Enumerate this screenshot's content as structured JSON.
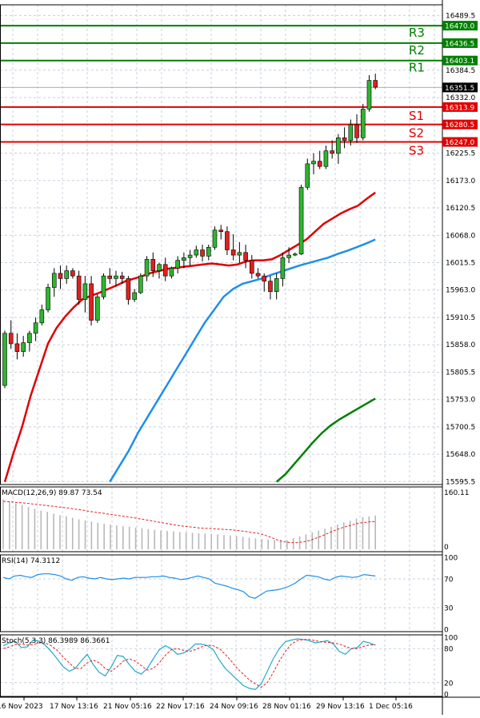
{
  "chart_data": [
    {
      "type": "candlestick",
      "price_axis": {
        "ylim": [
          15590,
          16510
        ],
        "ticks": [
          "16489.5",
          "16384.5",
          "16332.0",
          "16225.5",
          "16173.0",
          "16120.5",
          "16068.0",
          "16015.5",
          "15963.0",
          "15910.5",
          "15858.0",
          "15805.5",
          "15753.0",
          "15700.5",
          "15648.0",
          "15595.5"
        ],
        "current_price": "16351.5"
      },
      "levels": [
        {
          "name": "R3",
          "value": 16470.0,
          "label": "16470.0",
          "color": "#008000"
        },
        {
          "name": "R2",
          "value": 16436.5,
          "label": "16436.5",
          "color": "#008000"
        },
        {
          "name": "R1",
          "value": 16403.1,
          "label": "16403.1",
          "color": "#008000"
        },
        {
          "name": "S1",
          "value": 16313.9,
          "label": "16313.9",
          "color": "#e00000"
        },
        {
          "name": "S2",
          "value": 16280.5,
          "label": "16280.5",
          "color": "#e00000"
        },
        {
          "name": "S3",
          "value": 16247.0,
          "label": "16247.0",
          "color": "#e00000"
        }
      ],
      "x_labels": [
        "16 Nov 2023",
        "17 Nov 13:16",
        "21 Nov 05:16",
        "22 Nov 17:16",
        "24 Nov 09:16",
        "28 Nov 01:16",
        "29 Nov 13:16",
        "1 Dec 05:16"
      ],
      "candles": [
        [
          15780,
          15885,
          15775,
          15880
        ],
        [
          15880,
          15905,
          15850,
          15860
        ],
        [
          15860,
          15880,
          15830,
          15845
        ],
        [
          15845,
          15875,
          15835,
          15862
        ],
        [
          15862,
          15885,
          15845,
          15880
        ],
        [
          15880,
          15910,
          15865,
          15900
        ],
        [
          15900,
          15935,
          15895,
          15925
        ],
        [
          15925,
          15975,
          15920,
          15968
        ],
        [
          15968,
          16005,
          15950,
          15995
        ],
        [
          15995,
          16010,
          15965,
          15985
        ],
        [
          15985,
          16010,
          15975,
          16000
        ],
        [
          16000,
          16005,
          15985,
          15990
        ],
        [
          15990,
          16000,
          15935,
          15945
        ],
        [
          15945,
          15990,
          15920,
          15975
        ],
        [
          15975,
          15990,
          15895,
          15905
        ],
        [
          15905,
          15955,
          15900,
          15950
        ],
        [
          15950,
          15995,
          15945,
          15990
        ],
        [
          15990,
          16005,
          15975,
          15985
        ],
        [
          15985,
          16000,
          15970,
          15990
        ],
        [
          15990,
          15998,
          15975,
          15985
        ],
        [
          15985,
          15990,
          15935,
          15945
        ],
        [
          15945,
          15965,
          15940,
          15958
        ],
        [
          15958,
          15995,
          15955,
          15990
        ],
        [
          15990,
          16028,
          15980,
          16022
        ],
        [
          16022,
          16035,
          15988,
          16000
        ],
        [
          16000,
          16015,
          15985,
          16012
        ],
        [
          16012,
          16025,
          15980,
          15990
        ],
        [
          15990,
          16008,
          15985,
          16005
        ],
        [
          16005,
          16028,
          15995,
          16020
        ],
        [
          16020,
          16035,
          16005,
          16025
        ],
        [
          16025,
          16040,
          16010,
          16030
        ],
        [
          16030,
          16048,
          16025,
          16040
        ],
        [
          16040,
          16050,
          16018,
          16028
        ],
        [
          16028,
          16050,
          16020,
          16045
        ],
        [
          16045,
          16085,
          16040,
          16078
        ],
        [
          16078,
          16088,
          16060,
          16075
        ],
        [
          16075,
          16085,
          16030,
          16040
        ],
        [
          16040,
          16070,
          16020,
          16030
        ],
        [
          16030,
          16055,
          16015,
          16035
        ],
        [
          16035,
          16050,
          16005,
          16020
        ],
        [
          16020,
          16030,
          15985,
          15995
        ],
        [
          15995,
          16005,
          15985,
          15990
        ],
        [
          15990,
          15995,
          15960,
          15980
        ],
        [
          15980,
          15990,
          15945,
          15960
        ],
        [
          15960,
          15995,
          15945,
          15985
        ],
        [
          15985,
          16035,
          15970,
          16025
        ],
        [
          16025,
          16045,
          16015,
          16030
        ],
        [
          16030,
          16035,
          16028,
          16032
        ],
        [
          16032,
          16165,
          16030,
          16160
        ],
        [
          16160,
          16215,
          16155,
          16205
        ],
        [
          16205,
          16225,
          16185,
          16210
        ],
        [
          16210,
          16230,
          16195,
          16200
        ],
        [
          16200,
          16240,
          16195,
          16230
        ],
        [
          16230,
          16250,
          16215,
          16225
        ],
        [
          16225,
          16262,
          16205,
          16255
        ],
        [
          16255,
          16275,
          16235,
          16250
        ],
        [
          16250,
          16290,
          16240,
          16280
        ],
        [
          16280,
          16300,
          16245,
          16255
        ],
        [
          16255,
          16320,
          16250,
          16310
        ],
        [
          16310,
          16375,
          16305,
          16365
        ],
        [
          16365,
          16378,
          16348,
          16352
        ]
      ],
      "moving_averages": [
        {
          "color": "#e00000",
          "values": [
            15595,
            15650,
            15700,
            15760,
            15810,
            15860,
            15890,
            15912,
            15930,
            15945,
            15952,
            15958,
            15965,
            15972,
            15980,
            15985,
            15990,
            15996,
            16000,
            16004,
            16006,
            16008,
            16010,
            16012,
            16014,
            16012,
            16010,
            16012,
            16018,
            16020,
            16020,
            16022,
            16030,
            16040,
            16050,
            16060,
            16075,
            16090,
            16100,
            16110,
            16118,
            16125,
            16138,
            16150
          ]
        },
        {
          "color": "#1f8fe8",
          "values": [
            15595,
            15625,
            15655,
            15690,
            15720,
            15750,
            15780,
            15810,
            15840,
            15870,
            15900,
            15925,
            15950,
            15965,
            15975,
            15980,
            15985,
            15992,
            15998,
            16004,
            16010,
            16015,
            16020,
            16025,
            16032,
            16038,
            16045,
            16052,
            16060
          ]
        },
        {
          "color": "#008000",
          "values": [
            15595,
            15610,
            15630,
            15650,
            15670,
            15688,
            15703,
            15715,
            15725,
            15735,
            15745,
            15755
          ]
        }
      ],
      "indicators": [
        {
          "name": "macd",
          "label": "MACD(12,26,9) 89.87 73.54",
          "scale_top": "160.11",
          "scale_bottom": "0",
          "ylim": [
            0,
            160
          ],
          "histogram": [
            133,
            128,
            123,
            118,
            113,
            108,
            103,
            100,
            95,
            91,
            88,
            84,
            80,
            77,
            74,
            71,
            68,
            66,
            64,
            62,
            60,
            58,
            56,
            54,
            52,
            50,
            49,
            48,
            46,
            45,
            44,
            43,
            42,
            41,
            40,
            38,
            37,
            35,
            33,
            31,
            29,
            27,
            26,
            25,
            25,
            24,
            30,
            35,
            40,
            45,
            50,
            55,
            60,
            66,
            72,
            76,
            82,
            86,
            88,
            90
          ],
          "signal": [
            128,
            127,
            125,
            124,
            122,
            120,
            118,
            116,
            114,
            112,
            110,
            107,
            105,
            102,
            99,
            97,
            94,
            92,
            89,
            87,
            84,
            81,
            78,
            75,
            72,
            69,
            66,
            63,
            61,
            59,
            57,
            56,
            55,
            54,
            53,
            52,
            50,
            48,
            45,
            43,
            38,
            32,
            25,
            20,
            18,
            18,
            20,
            24,
            30,
            37,
            45,
            52,
            58,
            63,
            68,
            71,
            73,
            74
          ]
        },
        {
          "name": "rsi",
          "label": "RSI(14) 74.3112",
          "ylim": [
            0,
            100
          ],
          "ticks": [
            "100",
            "70",
            "30",
            "0"
          ],
          "values": [
            72,
            70,
            74,
            75,
            73,
            72,
            76,
            77,
            77,
            76,
            74,
            70,
            68,
            72,
            73,
            71,
            70,
            72,
            70,
            69,
            70,
            71,
            70,
            72,
            72,
            72,
            73,
            73,
            74,
            72,
            71,
            69,
            70,
            72,
            74,
            72,
            70,
            64,
            62,
            60,
            57,
            55,
            52,
            45,
            43,
            48,
            53,
            54,
            55,
            57,
            60,
            64,
            70,
            75,
            74,
            73,
            70,
            68,
            72,
            74,
            73,
            72,
            73,
            76,
            75,
            74
          ]
        },
        {
          "name": "stoch",
          "label": "Stoch(5,3,3) 86.3989 86.3661",
          "ylim": [
            0,
            100
          ],
          "ticks": [
            "100",
            "80",
            "20",
            "0"
          ],
          "k": [
            85,
            90,
            93,
            82,
            83,
            95,
            93,
            86,
            75,
            62,
            48,
            40,
            45,
            58,
            70,
            52,
            38,
            32,
            48,
            68,
            66,
            52,
            40,
            35,
            45,
            62,
            78,
            85,
            80,
            70,
            72,
            78,
            88,
            88,
            85,
            78,
            60,
            45,
            35,
            25,
            15,
            10,
            8,
            18,
            40,
            62,
            80,
            92,
            95,
            97,
            96,
            94,
            90,
            92,
            94,
            88,
            75,
            70,
            80,
            82,
            93,
            90,
            86
          ],
          "d": [
            80,
            83,
            87,
            88,
            86,
            87,
            90,
            90,
            85,
            77,
            65,
            55,
            45,
            45,
            55,
            60,
            55,
            45,
            40,
            48,
            58,
            62,
            58,
            50,
            42,
            45,
            55,
            68,
            78,
            80,
            77,
            75,
            78,
            83,
            86,
            85,
            80,
            70,
            58,
            45,
            35,
            25,
            18,
            12,
            20,
            38,
            58,
            75,
            88,
            94,
            96,
            96,
            94,
            92,
            91,
            90,
            88,
            84,
            80,
            80,
            84,
            86,
            87
          ]
        }
      ]
    }
  ]
}
